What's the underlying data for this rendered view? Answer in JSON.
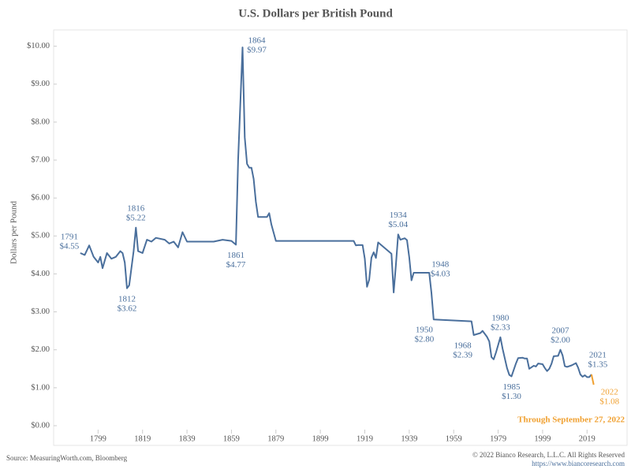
{
  "chart_data": {
    "type": "line",
    "title": "U.S. Dollars per British Pound",
    "ylabel": "Dollars per Pound",
    "source": "Source: MeasuringWorth.com, Bloomberg",
    "copyright": "© 2022 Bianco Research, L.L.C. All Rights Reserved",
    "website": "https://www.biancoresearch.com",
    "note": "Through September 27, 2022",
    "note_color": "#f0a030",
    "xlim": [
      1779,
      2037
    ],
    "xticks": [
      1799,
      1819,
      1839,
      1859,
      1879,
      1899,
      1919,
      1939,
      1959,
      1979,
      1999,
      2019
    ],
    "ylim": [
      0,
      10.2
    ],
    "yticks": [
      {
        "value": 0,
        "label": "$0.00"
      },
      {
        "value": 1,
        "label": "$1.00"
      },
      {
        "value": 2,
        "label": "$2.00"
      },
      {
        "value": 3,
        "label": "$3.00"
      },
      {
        "value": 4,
        "label": "$4.00"
      },
      {
        "value": 5,
        "label": "$5.00"
      },
      {
        "value": 6,
        "label": "$6.00"
      },
      {
        "value": 7,
        "label": "$7.00"
      },
      {
        "value": 8,
        "label": "$8.00"
      },
      {
        "value": 9,
        "label": "$9.00"
      },
      {
        "value": 10,
        "label": "$10.00"
      }
    ],
    "series": [
      {
        "color": "#4a6f9c",
        "x": [
          1791,
          1793,
          1795,
          1797,
          1799,
          1800,
          1801,
          1803,
          1805,
          1807,
          1809,
          1810,
          1811,
          1812,
          1813,
          1815,
          1816,
          1817,
          1819,
          1821,
          1823,
          1825,
          1829,
          1831,
          1833,
          1835,
          1837,
          1839,
          1843,
          1847,
          1851,
          1855,
          1859,
          1861,
          1862,
          1864,
          1865,
          1866,
          1867,
          1868,
          1869,
          1870,
          1871,
          1873,
          1875,
          1876,
          1877,
          1879,
          1890,
          1900,
          1914,
          1915,
          1916,
          1918,
          1919,
          1920,
          1921,
          1922,
          1923,
          1924,
          1925,
          1931,
          1932,
          1933,
          1934,
          1935,
          1937,
          1938,
          1939,
          1940,
          1941,
          1948,
          1949,
          1950,
          1967,
          1968,
          1971,
          1972,
          1974,
          1975,
          1976,
          1977,
          1978,
          1980,
          1981,
          1983,
          1984,
          1985,
          1987,
          1988,
          1990,
          1991,
          1992,
          1993,
          1995,
          1996,
          1997,
          1999,
          2000,
          2001,
          2002,
          2003,
          2004,
          2006,
          2007,
          2008,
          2009,
          2010,
          2012,
          2014,
          2015,
          2016,
          2017,
          2018,
          2019,
          2020,
          2021
        ],
        "values": [
          4.55,
          4.5,
          4.75,
          4.45,
          4.3,
          4.45,
          4.15,
          4.55,
          4.4,
          4.45,
          4.6,
          4.55,
          4.3,
          3.62,
          3.7,
          4.6,
          5.22,
          4.6,
          4.55,
          4.9,
          4.85,
          4.95,
          4.9,
          4.8,
          4.85,
          4.7,
          5.1,
          4.85,
          4.85,
          4.85,
          4.85,
          4.9,
          4.87,
          4.77,
          7.0,
          9.97,
          7.6,
          6.9,
          6.8,
          6.8,
          6.5,
          5.9,
          5.5,
          5.5,
          5.5,
          5.6,
          5.3,
          4.87,
          4.87,
          4.87,
          4.87,
          4.75,
          4.76,
          4.76,
          4.4,
          3.66,
          3.85,
          4.43,
          4.57,
          4.42,
          4.83,
          4.53,
          3.51,
          4.23,
          5.04,
          4.9,
          4.94,
          4.89,
          4.43,
          3.83,
          4.03,
          4.03,
          3.5,
          2.8,
          2.75,
          2.39,
          2.44,
          2.5,
          2.34,
          2.22,
          1.81,
          1.75,
          1.92,
          2.33,
          2.03,
          1.52,
          1.34,
          1.3,
          1.64,
          1.78,
          1.79,
          1.77,
          1.77,
          1.5,
          1.58,
          1.56,
          1.64,
          1.62,
          1.52,
          1.44,
          1.5,
          1.63,
          1.83,
          1.84,
          2.0,
          1.85,
          1.57,
          1.55,
          1.59,
          1.65,
          1.53,
          1.35,
          1.29,
          1.33,
          1.28,
          1.28,
          1.35
        ]
      },
      {
        "color": "#f0a030",
        "x": [
          2021,
          2022
        ],
        "values": [
          1.35,
          1.08
        ]
      }
    ],
    "annotations": [
      {
        "year": "1791",
        "value": "$4.55",
        "color": "#4a6f9c"
      },
      {
        "year": "1812",
        "value": "$3.62",
        "color": "#4a6f9c"
      },
      {
        "year": "1816",
        "value": "$5.22",
        "color": "#4a6f9c"
      },
      {
        "year": "1861",
        "value": "$4.77",
        "color": "#4a6f9c"
      },
      {
        "year": "1864",
        "value": "$9.97",
        "color": "#4a6f9c"
      },
      {
        "year": "1934",
        "value": "$5.04",
        "color": "#4a6f9c"
      },
      {
        "year": "1948",
        "value": "$4.03",
        "color": "#4a6f9c"
      },
      {
        "year": "1950",
        "value": "$2.80",
        "color": "#4a6f9c"
      },
      {
        "year": "1968",
        "value": "$2.39",
        "color": "#4a6f9c"
      },
      {
        "year": "1980",
        "value": "$2.33",
        "color": "#4a6f9c"
      },
      {
        "year": "1985",
        "value": "$1.30",
        "color": "#4a6f9c"
      },
      {
        "year": "2007",
        "value": "$2.00",
        "color": "#4a6f9c"
      },
      {
        "year": "2021",
        "value": "$1.35",
        "color": "#4a6f9c"
      },
      {
        "year": "2022",
        "value": "$1.08",
        "color": "#f0a030"
      }
    ]
  }
}
